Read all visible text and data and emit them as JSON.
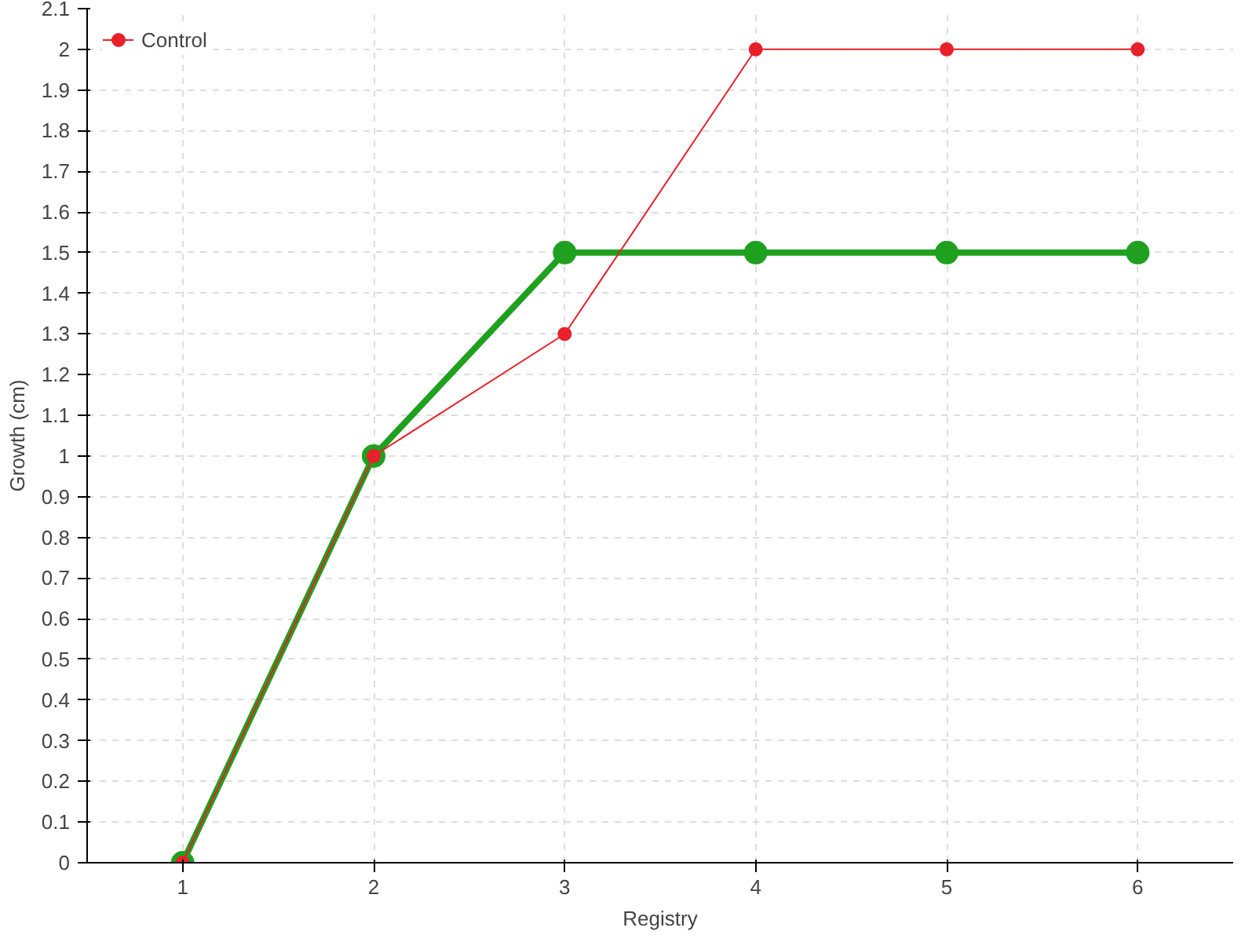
{
  "chart_data": {
    "type": "line",
    "xlabel": "Registry",
    "ylabel": "Growth (cm)",
    "x": [
      1,
      2,
      3,
      4,
      5,
      6
    ],
    "series": [
      {
        "color": "#1fa01f",
        "values": [
          0,
          1,
          1.5,
          1.5,
          1.5,
          1.5
        ]
      },
      {
        "name": "Control",
        "color": "#e8202a",
        "values": [
          0,
          1,
          1.3,
          2,
          2,
          2
        ]
      }
    ],
    "xlim": [
      0.5,
      6.5
    ],
    "xticks": [
      1,
      2,
      3,
      4,
      5,
      6
    ],
    "ylim": [
      0,
      2.1
    ],
    "yticks": [
      0,
      0.1,
      0.2,
      0.3,
      0.4,
      0.5,
      0.6,
      0.7,
      0.8,
      0.9,
      1,
      1.1,
      1.2,
      1.3,
      1.4,
      1.5,
      1.6,
      1.7,
      1.8,
      1.9,
      2,
      2.1
    ],
    "grid": true,
    "legend": "top left",
    "marker": "circle",
    "line_style": "solid"
  }
}
